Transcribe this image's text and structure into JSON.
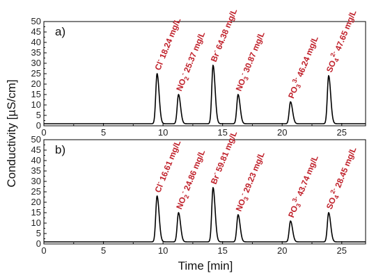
{
  "chart_data": {
    "type": "line",
    "xlabel": "Time [min]",
    "ylabel": "Conductivity [µS/cm]",
    "xlim": [
      0,
      27
    ],
    "ylim": [
      0,
      50
    ],
    "x_ticks": [
      "0",
      "5",
      "10",
      "15",
      "20",
      "25"
    ],
    "y_ticks": [
      "0",
      "5",
      "10",
      "15",
      "20",
      "25",
      "30",
      "35",
      "40",
      "45",
      "50"
    ],
    "line_color": "#000000",
    "label_color": "#c0202a",
    "panels": [
      {
        "label": "a)",
        "baseline": 1,
        "peaks": [
          {
            "ion": "Cl",
            "sub": "",
            "sup": "-",
            "conc": "18.24 mg/L",
            "time": 9.5,
            "height": 25
          },
          {
            "ion": "NO",
            "sub": "2",
            "sup": "-",
            "conc": "25.37 mg/L",
            "time": 11.3,
            "height": 15
          },
          {
            "ion": "Br",
            "sub": "",
            "sup": "-",
            "conc": "64.38 mg/L",
            "time": 14.2,
            "height": 29
          },
          {
            "ion": "NO",
            "sub": "3",
            "sup": "-",
            "conc": "30.87 mg/L",
            "time": 16.3,
            "height": 15
          },
          {
            "ion": "PO",
            "sub": "3",
            "sup": "3-",
            "conc": "46.24 mg/L",
            "time": 20.7,
            "height": 11.5
          },
          {
            "ion": "SO",
            "sub": "4",
            "sup": "2-",
            "conc": "47.65 mg/L",
            "time": 23.9,
            "height": 24
          }
        ]
      },
      {
        "label": "b)",
        "baseline": 1,
        "peaks": [
          {
            "ion": "Cl",
            "sub": "",
            "sup": "-",
            "conc": "16.61 mg/L",
            "time": 9.5,
            "height": 23
          },
          {
            "ion": "NO",
            "sub": "2",
            "sup": "-",
            "conc": "24.86 mg/L",
            "time": 11.3,
            "height": 15
          },
          {
            "ion": "Br",
            "sub": "",
            "sup": "-",
            "conc": "59.81 mg/L",
            "time": 14.2,
            "height": 27
          },
          {
            "ion": "NO",
            "sub": "3",
            "sup": "-",
            "conc": "29.23 mg/L",
            "time": 16.3,
            "height": 14
          },
          {
            "ion": "PO",
            "sub": "3",
            "sup": "3-",
            "conc": "43.74 mg/L",
            "time": 20.7,
            "height": 11
          },
          {
            "ion": "SO",
            "sub": "4",
            "sup": "2-",
            "conc": "28.45 mg/L",
            "time": 23.9,
            "height": 15
          }
        ]
      }
    ]
  }
}
